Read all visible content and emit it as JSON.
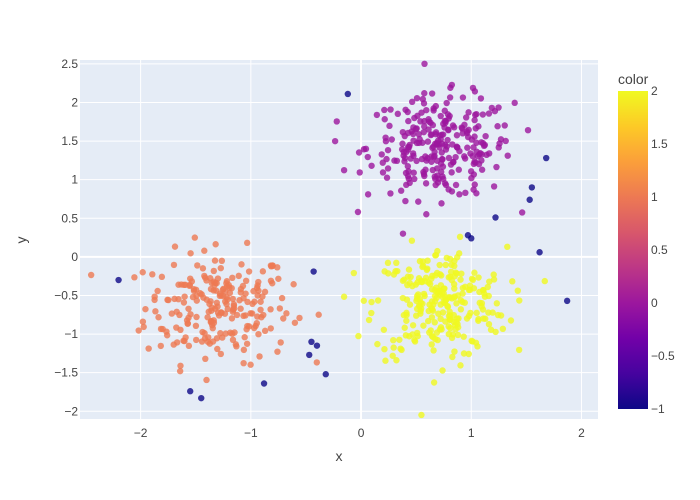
{
  "chart_data": {
    "type": "scatter",
    "title": "",
    "xlabel": "x",
    "ylabel": "y",
    "xlim": [
      -2.55,
      2.15
    ],
    "ylim": [
      -2.1,
      2.55
    ],
    "x_ticks": [
      -2,
      -1,
      0,
      1,
      2
    ],
    "x_tick_labels": [
      "−2",
      "−1",
      "0",
      "1",
      "2"
    ],
    "y_ticks": [
      -2,
      -1.5,
      -1,
      -0.5,
      0,
      0.5,
      1,
      1.5,
      2,
      2.5
    ],
    "y_tick_labels": [
      "−2",
      "−1.5",
      "−1",
      "−0.5",
      "0",
      "0.5",
      "1",
      "1.5",
      "2",
      "2.5"
    ],
    "grid": true,
    "colorbar": {
      "title": "color",
      "min": -1,
      "max": 2,
      "ticks": [
        -1,
        -0.5,
        0,
        0.5,
        1,
        1.5,
        2
      ],
      "tick_labels": [
        "−1",
        "−0.5",
        "0",
        "0.5",
        "1",
        "1.5",
        "2"
      ],
      "colorscale": [
        "#0d0887",
        "#46039f",
        "#7201a8",
        "#9c179e",
        "#bd3786",
        "#d8576b",
        "#ed7953",
        "#fb9f3a",
        "#fdca26",
        "#f0f921"
      ]
    },
    "clusters": [
      {
        "center": [
          -1.3,
          -0.65
        ],
        "spread": [
          0.33,
          0.36
        ],
        "count": 230,
        "color_value": 1
      },
      {
        "center": [
          0.72,
          1.42
        ],
        "spread": [
          0.33,
          0.33
        ],
        "count": 260,
        "color_value": 0
      },
      {
        "center": [
          0.72,
          -0.6
        ],
        "spread": [
          0.3,
          0.36
        ],
        "count": 260,
        "color_value": 2
      }
    ],
    "outliers": [
      {
        "x": -0.12,
        "y": 2.11,
        "c": -1
      },
      {
        "x": -2.2,
        "y": -0.3,
        "c": -1
      },
      {
        "x": -1.55,
        "y": -1.74,
        "c": -1
      },
      {
        "x": -1.45,
        "y": -1.83,
        "c": -1
      },
      {
        "x": -0.88,
        "y": -1.64,
        "c": -1
      },
      {
        "x": -0.45,
        "y": -1.1,
        "c": -1
      },
      {
        "x": -0.4,
        "y": -1.15,
        "c": -1
      },
      {
        "x": -0.47,
        "y": -1.27,
        "c": -1
      },
      {
        "x": -0.32,
        "y": -1.52,
        "c": -1
      },
      {
        "x": -0.43,
        "y": -0.19,
        "c": -1
      },
      {
        "x": 0.97,
        "y": 0.28,
        "c": -1
      },
      {
        "x": 1.0,
        "y": 0.24,
        "c": -1
      },
      {
        "x": 1.22,
        "y": 0.51,
        "c": -1
      },
      {
        "x": 1.55,
        "y": 0.9,
        "c": -1
      },
      {
        "x": 1.53,
        "y": 0.74,
        "c": -1
      },
      {
        "x": 1.68,
        "y": 1.28,
        "c": -1
      },
      {
        "x": 1.62,
        "y": 0.06,
        "c": -1
      },
      {
        "x": 1.87,
        "y": -0.57,
        "c": -1
      }
    ]
  }
}
